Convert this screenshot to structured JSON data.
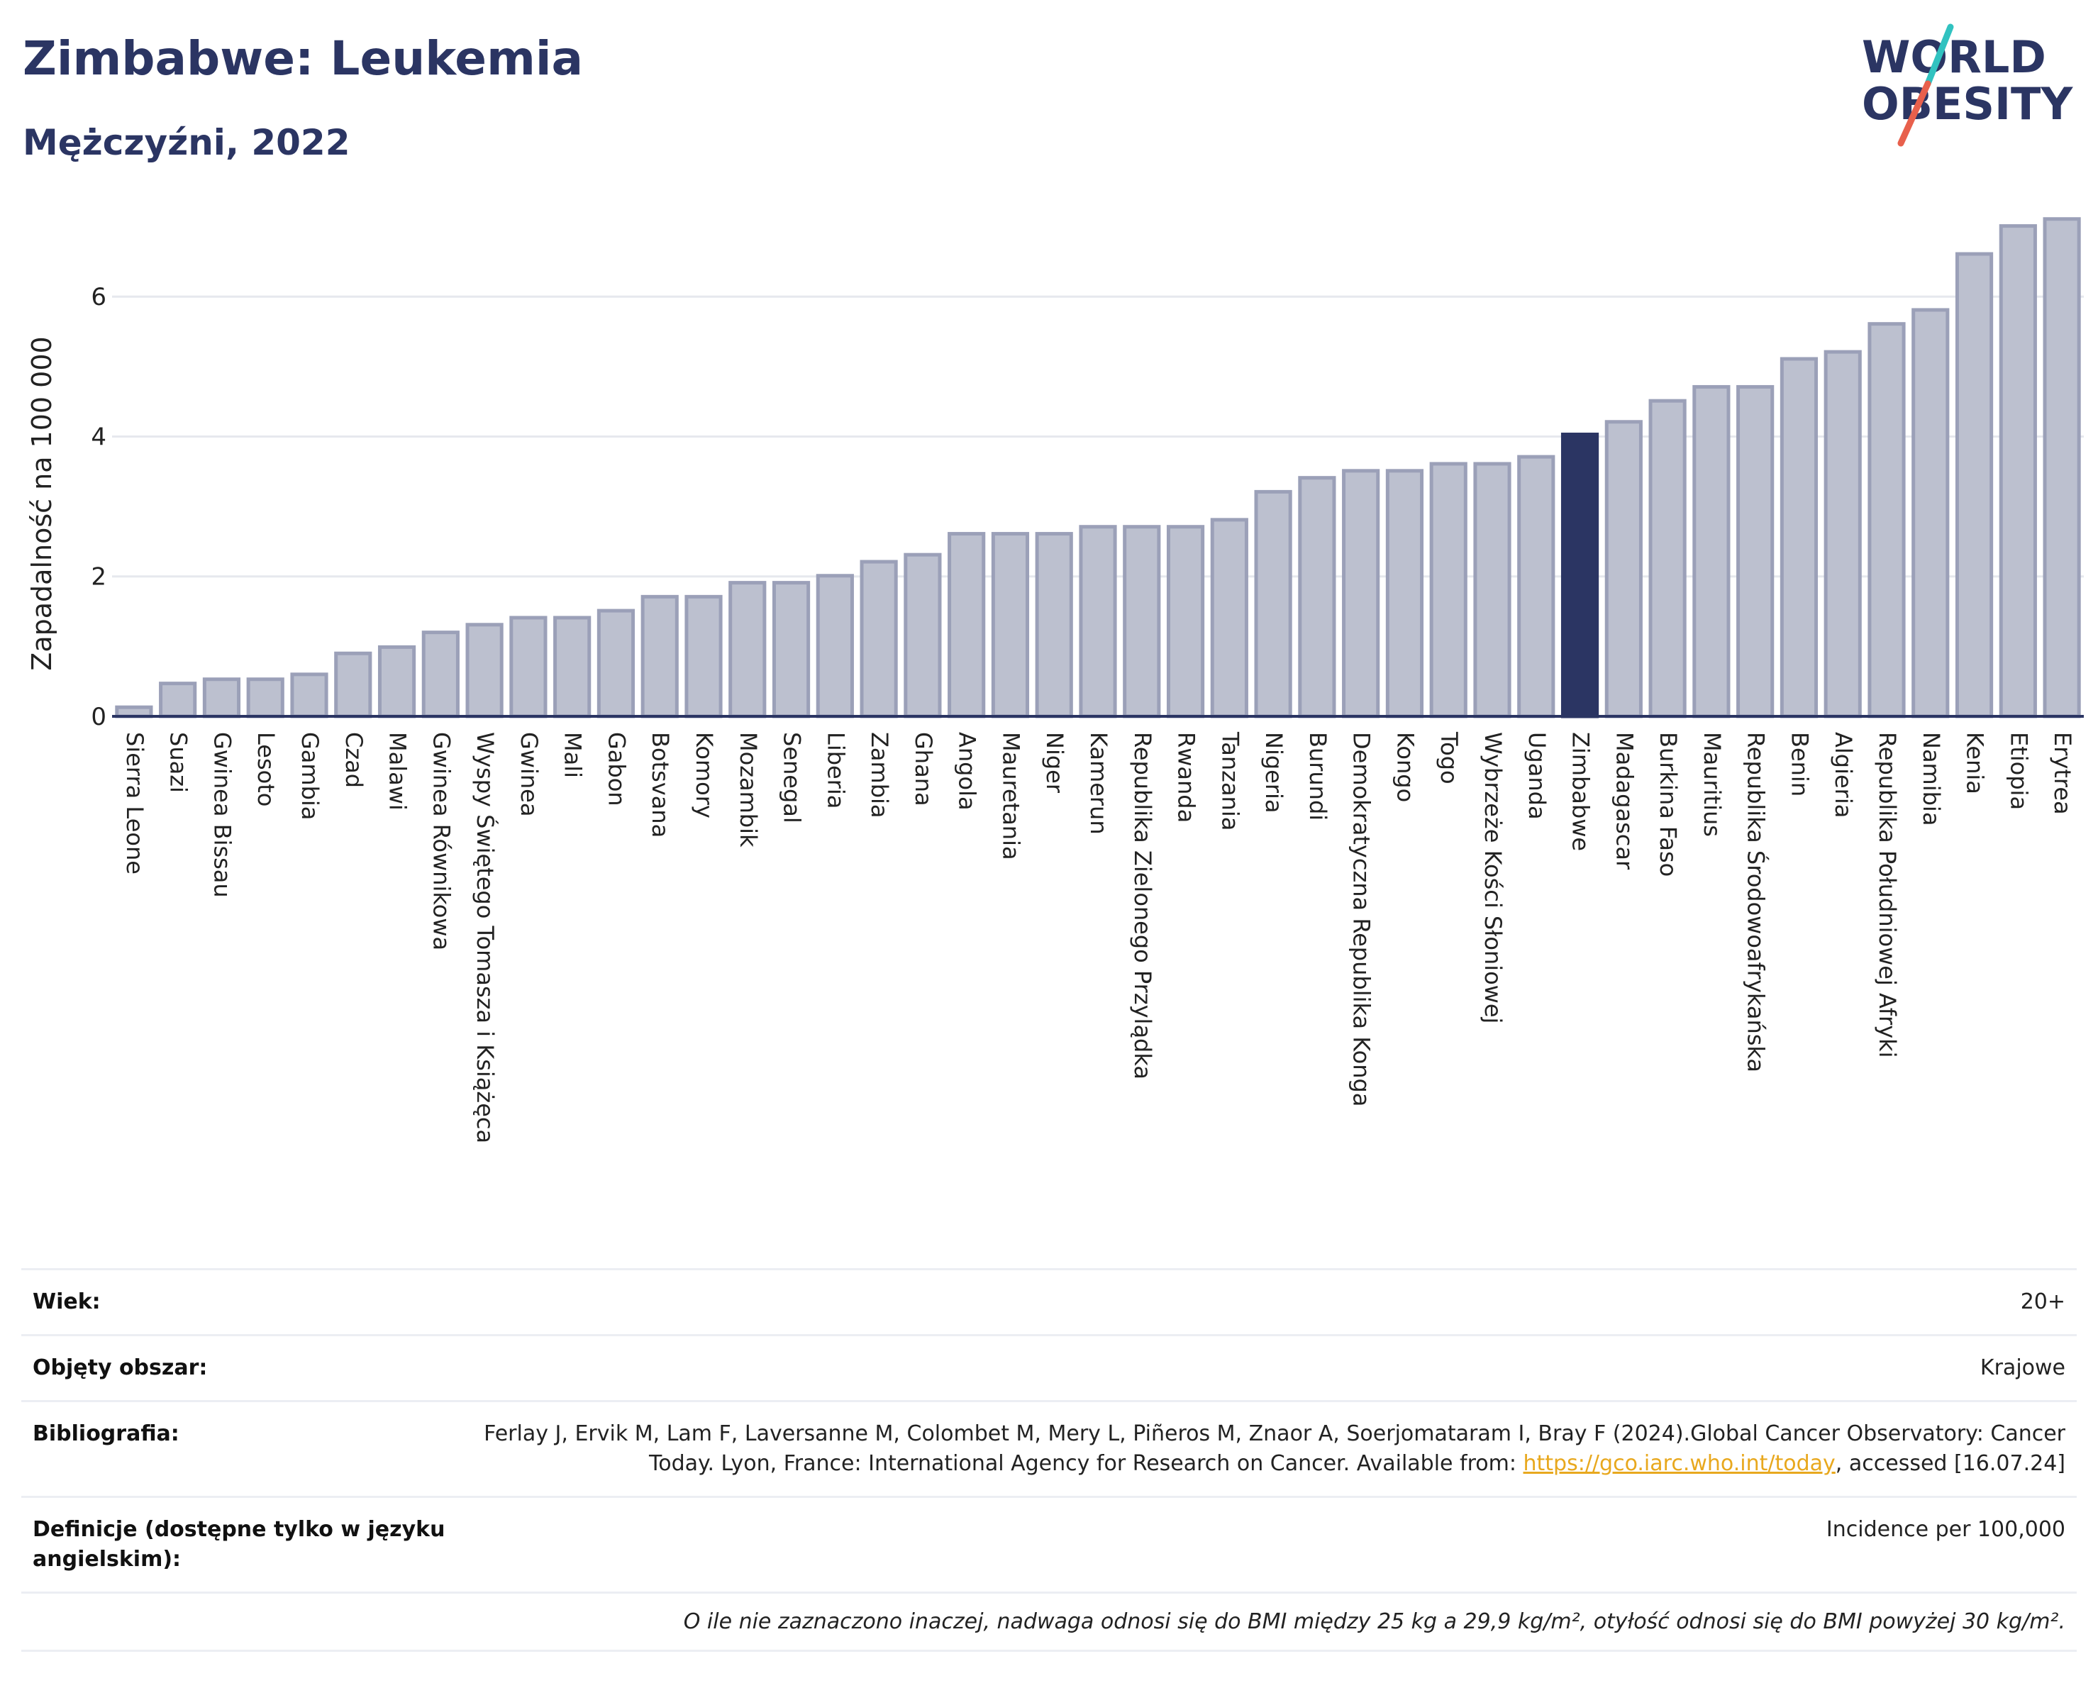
{
  "header": {
    "title": "Zimbabwe: Leukemia",
    "subtitle": "Mężczyźni, 2022"
  },
  "logo": {
    "line1": "WORLD",
    "line2": "OBESITY",
    "slash_colors": [
      "#31c2c0",
      "#e8604c"
    ],
    "text_color": "#2b3563"
  },
  "colors": {
    "bar": "#bcc0cf",
    "bar_border": "#9ba0b8",
    "highlight": "#2b3563",
    "grid": "#e6e8ee"
  },
  "chart_data": {
    "type": "bar",
    "ylabel": "Zapadalność na 100 000",
    "ylim": [
      0,
      7.3
    ],
    "yticks": [
      0,
      2,
      4,
      6
    ],
    "grid": true,
    "highlight": "Zimbabwe",
    "categories": [
      "Sierra Leone",
      "Suazi",
      "Gwinea Bissau",
      "Lesoto",
      "Gambia",
      "Czad",
      "Malawi",
      "Gwinea Równikowa",
      "Wyspy Świętego Tomasza i Książęca",
      "Gwinea",
      "Mali",
      "Gabon",
      "Botsvana",
      "Komory",
      "Mozambik",
      "Senegal",
      "Liberia",
      "Zambia",
      "Ghana",
      "Angola",
      "Mauretania",
      "Niger",
      "Kamerun",
      "Republika Zielonego Przylądka",
      "Rwanda",
      "Tanzania",
      "Nigeria",
      "Burundi",
      "Demokratyczna Republika Konga",
      "Kongo",
      "Togo",
      "Wybrzeże Kości Słoniowej",
      "Uganda",
      "Zimbabwe",
      "Madagascar",
      "Burkina Faso",
      "Mauritius",
      "Republika Środowoafrykańska",
      "Benin",
      "Algieria",
      "Republika Południowej Afryki",
      "Namibia",
      "Kenia",
      "Etiopia",
      "Erytrea"
    ],
    "values": [
      0.13,
      0.47,
      0.53,
      0.53,
      0.6,
      0.9,
      0.99,
      1.2,
      1.31,
      1.41,
      1.41,
      1.51,
      1.71,
      1.71,
      1.91,
      1.91,
      2.01,
      2.21,
      2.31,
      2.61,
      2.61,
      2.61,
      2.71,
      2.71,
      2.71,
      2.81,
      3.21,
      3.41,
      3.51,
      3.51,
      3.61,
      3.61,
      3.71,
      4.03,
      4.21,
      4.51,
      4.71,
      4.71,
      5.11,
      5.21,
      5.61,
      5.81,
      6.61,
      7.01,
      7.11
    ]
  },
  "info": {
    "rows": [
      {
        "key": "Wiek:",
        "value": "20+"
      },
      {
        "key": "Objęty obszar:",
        "value": "Krajowe"
      },
      {
        "key": "Bibliografia:",
        "value_before": "Ferlay J, Ervik M, Lam F, Laversanne M, Colombet M, Mery L, Piñeros M, Znaor A, Soerjomataram I, Bray F (2024).Global Cancer Observatory: Cancer Today. Lyon, France: International Agency for Research on Cancer. Available from: ",
        "link": "https://gco.iarc.who.int/today",
        "value_after": ", accessed [16.07.24]"
      },
      {
        "key": "Definicje (dostępne tylko w języku angielskim):",
        "value": "Incidence per 100,000"
      }
    ],
    "note": "O ile nie zaznaczono inaczej, nadwaga odnosi się do BMI między 25 kg a 29,9 kg/m², otyłość odnosi się do BMI powyżej 30 kg/m²."
  }
}
